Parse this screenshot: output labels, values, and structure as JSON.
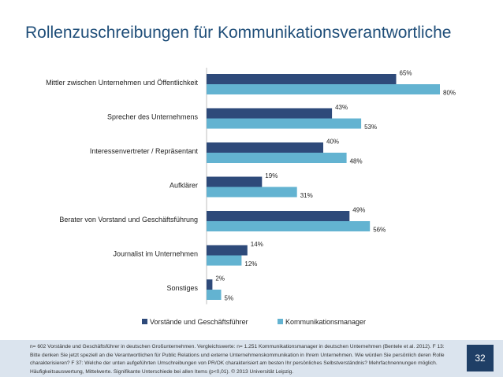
{
  "slide": {
    "title": "Rollenzuschreibungen für Kommunikationsverantwortliche",
    "page_number": "32",
    "footnote": "n= 602 Vorstände und Geschäftsführer in deutschen Großunternehmen. Vergleichswerte: n= 1.251 Kommunikationsmanager in deutschen Unternehmen (Bentele et al. 2012). F 13: Bitte denken Sie jetzt speziell an die Verantwortlichen für Public Relations und externe Unternehmenskommunikation in Ihrem Unternehmen. Wie würden Sie persönlich deren Rolle charakterisieren? F 37: Welche der unten aufgeführten Umschreibungen von PR/OK charakterisiert am besten Ihr persönliches Selbstverständnis? Mehrfachnennungen möglich. Häufigkeitsauswertung, Mittelwerte. Signifikante Unterschiede bei allen Items (p<0,01). © 2013 Universität Leipzig."
  },
  "colors": {
    "series1": "#2e4a7a",
    "series2": "#63b3d1",
    "title": "#1f4e79",
    "axis": "#bfbfbf",
    "footer_bg": "#dbe4ee",
    "page_box": "#1f3f66"
  },
  "chart_data": {
    "type": "bar",
    "orientation": "horizontal",
    "title": "Rollenzuschreibungen für Kommunikationsverantwortliche",
    "xlabel": "",
    "ylabel": "",
    "xlim": [
      0,
      100
    ],
    "grid": false,
    "legend_position": "bottom",
    "categories": [
      "Mittler zwischen Unternehmen und Öffentlichkeit",
      "Sprecher  des Unternehmens",
      "Interessenvertreter / Repräsentant",
      "Aufklärer",
      "Berater von Vorstand und Geschäftsführung",
      "Journalist im Unternehmen",
      "Sonstiges"
    ],
    "series": [
      {
        "name": "Vorstände und Geschäftsführer",
        "values": [
          65,
          43,
          40,
          19,
          49,
          14,
          2
        ]
      },
      {
        "name": "Kommunikationsmanager",
        "values": [
          80,
          53,
          48,
          31,
          56,
          12,
          5
        ]
      }
    ],
    "value_suffix": "%"
  }
}
